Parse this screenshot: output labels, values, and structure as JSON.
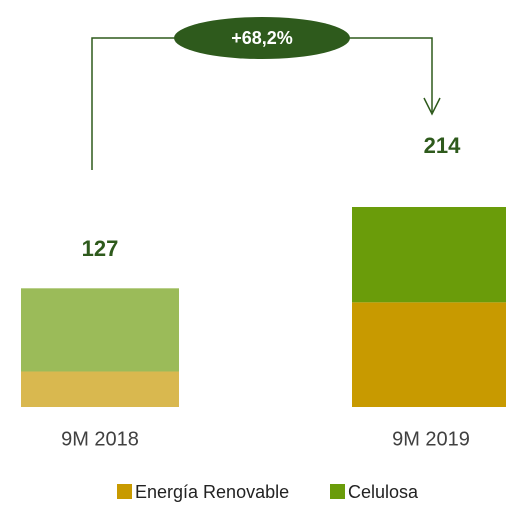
{
  "chart_data": {
    "type": "stacked_bar",
    "categories": [
      "9M 2018",
      "9M 2019"
    ],
    "series": [
      {
        "name": "Energía Renovable",
        "color": "#c89a00",
        "colors": [
          "#d9b84f",
          "#c89a00"
        ],
        "values": [
          38,
          112
        ]
      },
      {
        "name": "Celulosa",
        "color": "#6a9c0a",
        "colors": [
          "#9bbb59",
          "#6a9c0a"
        ],
        "values": [
          89,
          102
        ]
      }
    ],
    "totals": [
      127,
      214
    ],
    "annotation": "+68,2%"
  }
}
